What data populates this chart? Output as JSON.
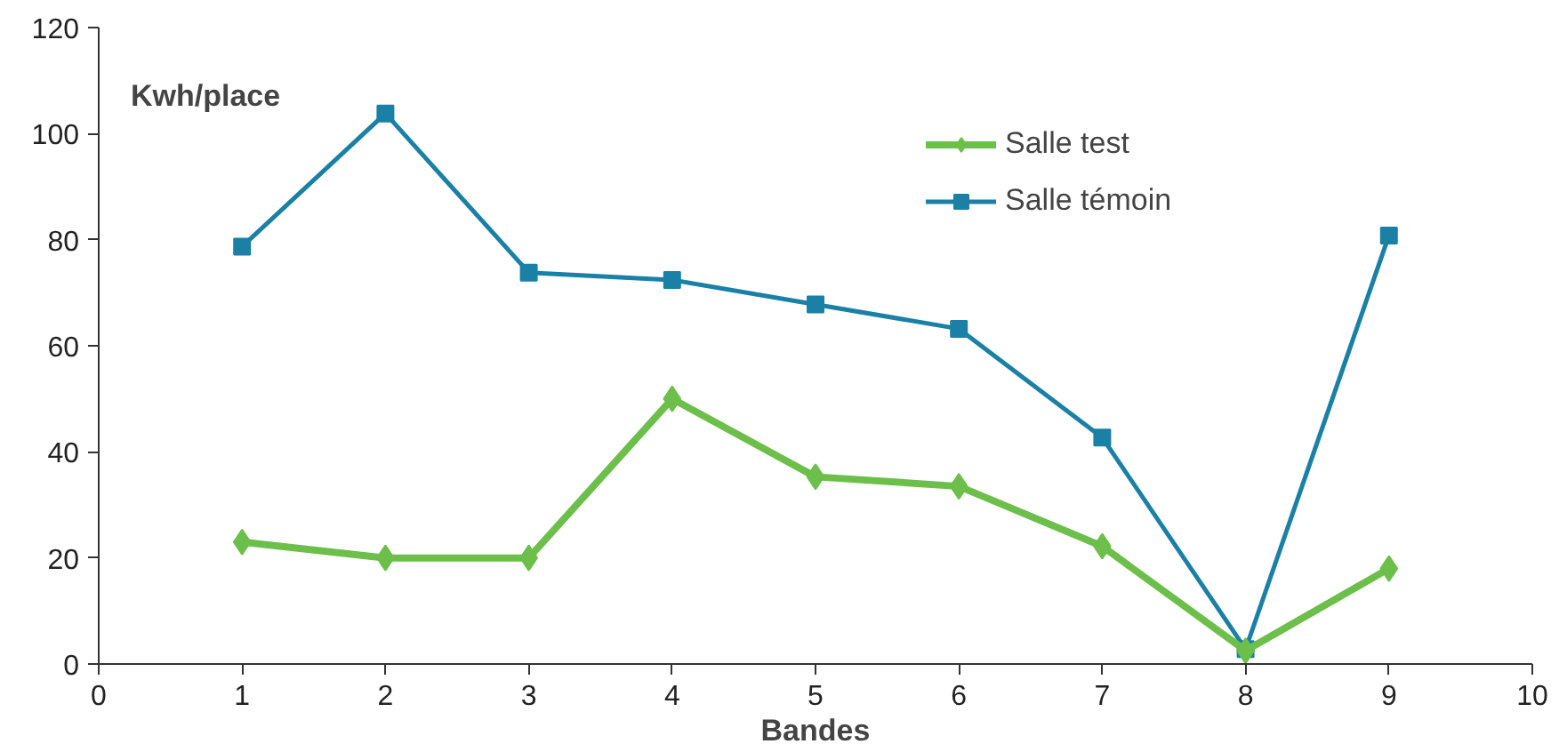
{
  "chart_data": {
    "type": "line",
    "xlabel": "Bandes",
    "ylabel": "Kwh/place",
    "x": [
      1,
      2,
      3,
      4,
      5,
      6,
      7,
      8,
      9
    ],
    "series": [
      {
        "name": "Salle test",
        "color": "#6cbf4a",
        "marker": "diamond",
        "values": [
          23,
          20,
          20,
          50,
          35.3,
          33.5,
          22.2,
          2.5,
          18
        ]
      },
      {
        "name": "Salle témoin",
        "color": "#1a80a6",
        "marker": "square",
        "values": [
          78.7,
          103.8,
          73.8,
          72.4,
          67.8,
          63.2,
          42.7,
          2.8,
          80.8
        ]
      }
    ],
    "xlim": [
      0,
      10
    ],
    "xticks": [
      0,
      1,
      2,
      3,
      4,
      5,
      6,
      7,
      8,
      9,
      10
    ],
    "ylim": [
      0,
      120
    ],
    "yticks": [
      0,
      20,
      40,
      60,
      80,
      100,
      120
    ],
    "grid": false,
    "legend": "top right"
  }
}
